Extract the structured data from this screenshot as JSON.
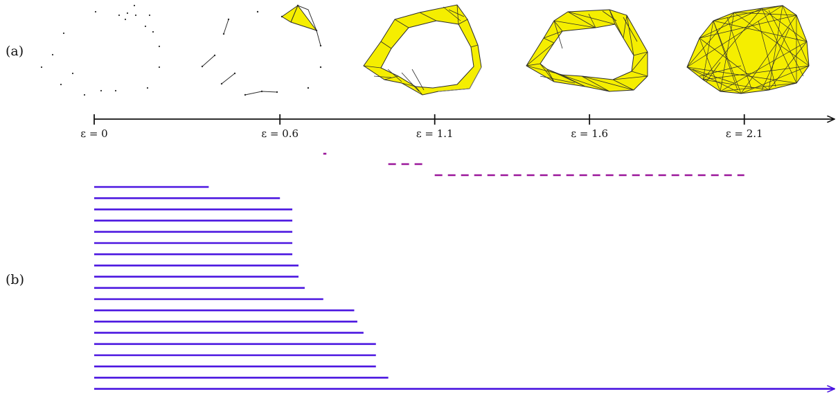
{
  "panel_labels": {
    "a": "(a)",
    "b": "(b)"
  },
  "colors": {
    "simplex_fill": "#f5ee00",
    "edge": "#2b2b2b",
    "axis": "#111111",
    "h0_bar": "#4a14e0",
    "h1_bar": "#9a169a"
  },
  "filtration": {
    "tick_values": [
      0,
      0.6,
      1.1,
      1.6,
      2.1
    ],
    "tick_labels": [
      "ε = 0",
      "ε = 0.6",
      "ε = 1.1",
      "ε = 1.6",
      "ε = 2.1"
    ],
    "axis_max": 2.35
  },
  "barcode": {
    "h0_bars": [
      {
        "birth": 0,
        "death": 0.37
      },
      {
        "birth": 0,
        "death": 0.6
      },
      {
        "birth": 0,
        "death": 0.64
      },
      {
        "birth": 0,
        "death": 0.64
      },
      {
        "birth": 0,
        "death": 0.64
      },
      {
        "birth": 0,
        "death": 0.64
      },
      {
        "birth": 0,
        "death": 0.64
      },
      {
        "birth": 0,
        "death": 0.66
      },
      {
        "birth": 0,
        "death": 0.66
      },
      {
        "birth": 0,
        "death": 0.68
      },
      {
        "birth": 0,
        "death": 0.74
      },
      {
        "birth": 0,
        "death": 0.84
      },
      {
        "birth": 0,
        "death": 0.85
      },
      {
        "birth": 0,
        "death": 0.87
      },
      {
        "birth": 0,
        "death": 0.91
      },
      {
        "birth": 0,
        "death": 0.91
      },
      {
        "birth": 0,
        "death": 0.91
      },
      {
        "birth": 0,
        "death": 0.95
      },
      {
        "birth": 0,
        "death": null
      }
    ],
    "h1_bars": [
      {
        "birth": 0.74,
        "death": 0.75
      },
      {
        "birth": 0.95,
        "death": 1.06
      },
      {
        "birth": 1.1,
        "death": 2.1
      }
    ]
  }
}
